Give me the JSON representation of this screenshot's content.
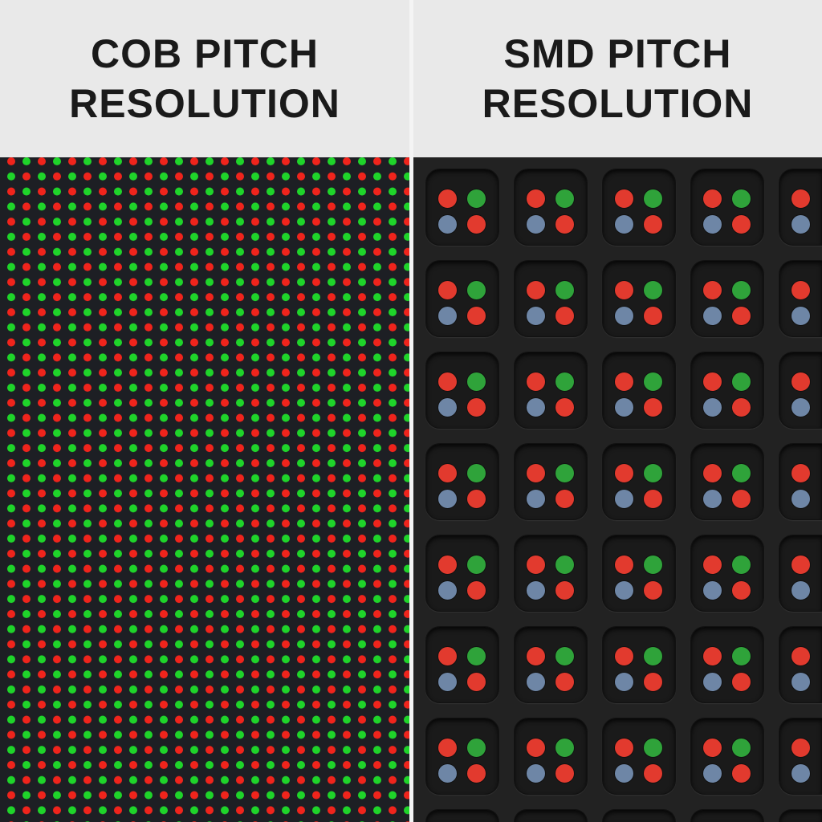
{
  "left_panel": {
    "title_line1": "COB PITCH",
    "title_line2": "RESOLUTION"
  },
  "right_panel": {
    "title_line1": "SMD PITCH",
    "title_line2": "RESOLUTION"
  },
  "colors": {
    "red": "#e23a2e",
    "green": "#2fa33a",
    "blue": "#6e86a6",
    "cob_red": "#f0241c",
    "cob_green": "#1fd42a"
  }
}
